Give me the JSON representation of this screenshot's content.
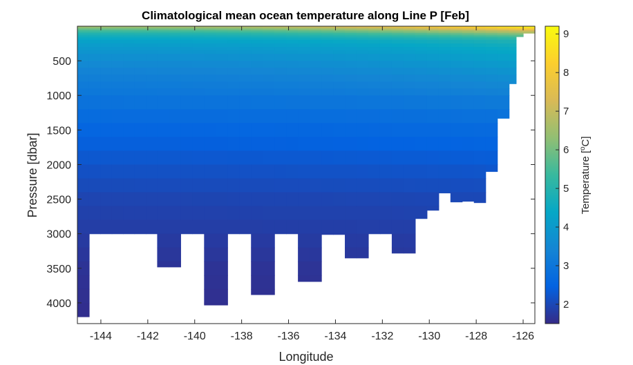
{
  "chart_data": {
    "type": "heatmap",
    "title": "Climatological mean ocean temperature along Line P [Feb]",
    "xlabel": "Longitude",
    "ylabel": "Pressure [dbar]",
    "colorbar_label": "Temperature [",
    "colorbar_label_sup": "o",
    "colorbar_label_unit": "C]",
    "xlim": [
      -145,
      -125.5
    ],
    "ylim": [
      0,
      4300
    ],
    "y_reversed": true,
    "clim": [
      1.5,
      9.2
    ],
    "colormap": "parula",
    "x_ticks": [
      -144,
      -142,
      -140,
      -138,
      -136,
      -134,
      -132,
      -130,
      -128,
      -126
    ],
    "y_ticks": [
      500,
      1000,
      1500,
      2000,
      2500,
      3000,
      3500,
      4000
    ],
    "colorbar_ticks": [
      2,
      3,
      4,
      5,
      6,
      7,
      8,
      9
    ],
    "grid": false,
    "columns": [
      {
        "x0": -145.0,
        "x1": -144.5,
        "bottom": 4300
      },
      {
        "x0": -144.5,
        "x1": -141.6,
        "bottom": 3000
      },
      {
        "x0": -141.6,
        "x1": -140.6,
        "bottom": 3480
      },
      {
        "x0": -140.6,
        "x1": -139.6,
        "bottom": 3000
      },
      {
        "x0": -139.6,
        "x1": -138.6,
        "bottom": 4030
      },
      {
        "x0": -138.6,
        "x1": -137.6,
        "bottom": 3000
      },
      {
        "x0": -137.6,
        "x1": -136.6,
        "bottom": 3880
      },
      {
        "x0": -136.6,
        "x1": -135.6,
        "bottom": 3000
      },
      {
        "x0": -135.6,
        "x1": -134.6,
        "bottom": 3690
      },
      {
        "x0": -134.6,
        "x1": -133.6,
        "bottom": 3010
      },
      {
        "x0": -133.6,
        "x1": -132.6,
        "bottom": 3350
      },
      {
        "x0": -132.6,
        "x1": -131.6,
        "bottom": 3000
      },
      {
        "x0": -131.6,
        "x1": -130.6,
        "bottom": 3280
      },
      {
        "x0": -130.6,
        "x1": -130.1,
        "bottom": 2780
      },
      {
        "x0": -130.1,
        "x1": -129.6,
        "bottom": 2660
      },
      {
        "x0": -129.6,
        "x1": -129.1,
        "bottom": 2410
      },
      {
        "x0": -129.1,
        "x1": -128.6,
        "bottom": 2540
      },
      {
        "x0": -128.6,
        "x1": -128.1,
        "bottom": 2530
      },
      {
        "x0": -128.1,
        "x1": -127.6,
        "bottom": 2550
      },
      {
        "x0": -127.6,
        "x1": -127.1,
        "bottom": 2100
      },
      {
        "x0": -127.1,
        "x1": -126.6,
        "bottom": 1330
      },
      {
        "x0": -126.6,
        "x1": -126.3,
        "bottom": 830
      },
      {
        "x0": -126.3,
        "x1": -126.0,
        "bottom": 150
      },
      {
        "x0": -126.0,
        "x1": -125.5,
        "bottom": 100
      }
    ],
    "profile_offshore": [
      [
        0,
        6.6
      ],
      [
        20,
        6.3
      ],
      [
        50,
        5.7
      ],
      [
        100,
        5.0
      ],
      [
        150,
        4.6
      ],
      [
        200,
        4.3
      ],
      [
        300,
        4.0
      ],
      [
        500,
        3.6
      ],
      [
        700,
        3.3
      ],
      [
        1000,
        3.0
      ],
      [
        1200,
        2.8
      ],
      [
        1500,
        2.55
      ],
      [
        2000,
        2.2
      ],
      [
        2500,
        1.95
      ],
      [
        3000,
        1.8
      ],
      [
        3500,
        1.65
      ],
      [
        4300,
        1.55
      ]
    ],
    "profile_inshore": [
      [
        0,
        9.2
      ],
      [
        20,
        8.8
      ],
      [
        50,
        7.6
      ],
      [
        100,
        6.5
      ],
      [
        150,
        5.6
      ],
      [
        200,
        5.0
      ],
      [
        300,
        4.6
      ],
      [
        500,
        4.2
      ],
      [
        700,
        3.8
      ],
      [
        1000,
        3.3
      ],
      [
        1200,
        3.0
      ],
      [
        1500,
        2.7
      ],
      [
        2000,
        2.3
      ],
      [
        2500,
        2.0
      ],
      [
        3000,
        1.85
      ],
      [
        3500,
        1.7
      ],
      [
        4300,
        1.6
      ]
    ],
    "colormap_stops": [
      "#352A87",
      "#0363E1",
      "#1485D4",
      "#06A7C6",
      "#38B99E",
      "#92BF73",
      "#D9BA56",
      "#FCCE2E",
      "#F9FB0E"
    ]
  }
}
